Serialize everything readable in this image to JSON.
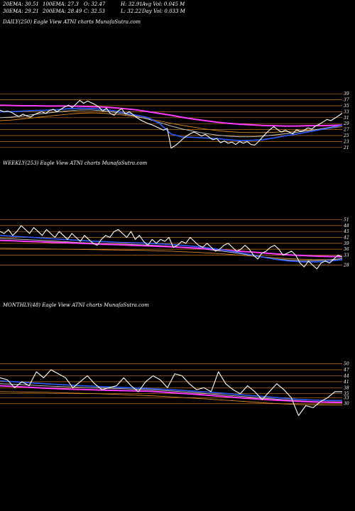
{
  "header": {
    "row1": [
      "20EMA: 30.51",
      "100EMA: 27.3",
      "O: 32.47",
      "H: 32.91",
      "Avg Vol: 0.045 M"
    ],
    "row2": [
      "30EMA: 29.21",
      "200EMA: 28.49",
      "C: 32.53",
      "L: 32.22",
      "Day Vol: 0.033 M"
    ]
  },
  "colors": {
    "background": "#000000",
    "price": "#ffffff",
    "ema_blue": "#2f5bff",
    "ema_magenta": "#ff3bff",
    "ema_orange": "#d98a2a",
    "ema_white": "#cfcfcf",
    "grid": "#c8761e"
  },
  "chart_data": [
    {
      "type": "line",
      "title": "DAILY(250) Eagle  View  ATNI charts MunafaSutra.com",
      "ylim": [
        20,
        40
      ],
      "yticks": [
        39,
        37,
        35,
        33,
        31,
        29,
        27,
        25,
        23,
        21
      ],
      "series": [
        {
          "role": "price",
          "values": [
            33.5,
            33.0,
            33.2,
            32.8,
            32.0,
            31.4,
            32.2,
            31.6,
            31.2,
            32.0,
            32.6,
            33.0,
            32.4,
            33.4,
            33.8,
            33.0,
            33.8,
            34.6,
            35.2,
            34.4,
            35.6,
            36.8,
            35.8,
            36.6,
            36.0,
            35.4,
            34.6,
            33.2,
            34.2,
            32.4,
            31.8,
            33.2,
            34.0,
            32.2,
            33.0,
            32.0,
            31.0,
            30.2,
            29.6,
            29.0,
            28.6,
            28.0,
            27.4,
            26.8,
            27.4,
            20.8,
            21.6,
            22.6,
            23.8,
            24.8,
            25.6,
            26.2,
            25.6,
            24.8,
            25.4,
            24.4,
            23.6,
            24.0,
            22.6,
            23.2,
            22.4,
            22.8,
            22.0,
            23.0,
            22.4,
            23.0,
            22.0,
            21.8,
            23.0,
            24.4,
            25.8,
            27.0,
            28.0,
            27.0,
            26.2,
            26.8,
            26.2,
            25.6,
            27.0,
            26.4,
            26.8,
            27.6,
            27.2,
            28.2,
            28.8,
            29.6,
            30.4,
            30.0,
            30.8,
            31.6,
            32.5
          ]
        },
        {
          "role": "ema_magenta",
          "values": [
            35.2,
            35.1,
            35.0,
            35.0,
            34.9,
            34.9,
            34.9,
            34.8,
            34.7,
            34.6,
            34.3,
            34.0,
            33.6,
            33.0,
            32.4,
            31.8,
            31.1,
            30.5,
            30.0,
            29.5,
            29.1,
            28.8,
            28.6,
            28.4,
            28.3,
            28.2,
            28.2,
            28.3,
            28.3,
            28.4,
            28.5
          ]
        },
        {
          "role": "ema_blue",
          "values": [
            33.0,
            33.0,
            33.2,
            33.4,
            33.5,
            33.7,
            34.0,
            34.2,
            34.1,
            33.8,
            33.3,
            32.6,
            31.8,
            31.0,
            29.0,
            25.5,
            24.5,
            24.4,
            24.2,
            24.0,
            23.6,
            23.3,
            23.4,
            23.6,
            24.2,
            24.9,
            25.5,
            26.2,
            26.9,
            27.6,
            28.5
          ]
        },
        {
          "role": "ema_orange",
          "values": [
            30.0,
            30.2,
            30.6,
            31.0,
            31.4,
            31.8,
            32.2,
            32.5,
            32.6,
            32.5,
            32.2,
            31.8,
            31.3,
            30.6,
            29.9,
            29.1,
            28.4,
            27.8,
            27.2,
            26.7,
            26.3,
            26.1,
            26.0,
            26.0,
            26.1,
            26.3,
            26.5,
            26.8,
            27.1,
            27.5,
            28.0
          ]
        },
        {
          "role": "ema_white",
          "values": [
            31.0,
            31.2,
            31.6,
            32.1,
            32.5,
            32.9,
            33.3,
            33.6,
            33.6,
            33.3,
            32.8,
            32.2,
            31.4,
            30.5,
            29.4,
            28.2,
            27.2,
            26.4,
            25.7,
            25.2,
            24.8,
            24.6,
            24.6,
            24.8,
            25.2,
            25.6,
            26.1,
            26.6,
            27.2,
            27.8,
            28.6
          ]
        }
      ]
    },
    {
      "type": "line",
      "title": "WEEKLY(253) Eagle  View  ATNI charts MunafaSutra.com",
      "ylim": [
        22,
        53
      ],
      "yticks": [
        51,
        48,
        45,
        42,
        39,
        36,
        33,
        28
      ],
      "series": [
        {
          "role": "price",
          "values": [
            45,
            44,
            46,
            43,
            45,
            48,
            46,
            44,
            47,
            45,
            43,
            46,
            44,
            42,
            45,
            43,
            41,
            44,
            42,
            40,
            43,
            41,
            39,
            38,
            41,
            43,
            42,
            45,
            46,
            44,
            42,
            45,
            41,
            43,
            40,
            38,
            41,
            39,
            41,
            40,
            42,
            37,
            38,
            40,
            39,
            42,
            40,
            38,
            37,
            39,
            37,
            35,
            36,
            38,
            39,
            37,
            35,
            36,
            38,
            36,
            33,
            31,
            34,
            35,
            37,
            38,
            36,
            33,
            34,
            35,
            33,
            29,
            27,
            30,
            28,
            26,
            29,
            30,
            29,
            31,
            33,
            32
          ]
        },
        {
          "role": "ema_magenta",
          "values": [
            40.5,
            40.3,
            40.0,
            39.8,
            39.5,
            39.3,
            39.0,
            38.8,
            38.5,
            38.3,
            38.0,
            37.8,
            37.5,
            37.2,
            36.9,
            36.5,
            36.1,
            35.6,
            35.1,
            34.6,
            34.1,
            33.6,
            33.1,
            32.8,
            32.5,
            32.3,
            32.2
          ]
        },
        {
          "role": "ema_blue",
          "values": [
            43.0,
            42.6,
            42.2,
            41.8,
            41.3,
            40.9,
            40.5,
            40.1,
            39.8,
            39.5,
            39.3,
            39.1,
            38.8,
            38.4,
            37.9,
            37.3,
            36.5,
            35.6,
            34.5,
            33.3,
            32.0,
            30.8,
            30.0,
            29.6,
            29.6,
            30.0,
            30.6
          ]
        },
        {
          "role": "ema_orange",
          "values": [
            36.5,
            36.4,
            36.3,
            36.2,
            36.1,
            36.0,
            35.9,
            35.8,
            35.7,
            35.6,
            35.5,
            35.4,
            35.2,
            35.0,
            34.7,
            34.4,
            34.0,
            33.6,
            33.1,
            32.6,
            32.1,
            31.6,
            31.2,
            30.9,
            30.7,
            30.6,
            30.6
          ]
        },
        {
          "role": "ema_white",
          "values": [
            41.5,
            41.2,
            40.9,
            40.6,
            40.2,
            39.8,
            39.4,
            39.1,
            38.8,
            38.6,
            38.4,
            38.2,
            37.9,
            37.5,
            37.0,
            36.4,
            35.7,
            34.9,
            34.0,
            33.0,
            32.0,
            31.1,
            30.5,
            30.2,
            30.3,
            30.7,
            31.2
          ]
        }
      ]
    },
    {
      "type": "line",
      "title": "MONTHLY(48) Eagle  View  ATNI charts MunafaSutra.com",
      "ylim": [
        21,
        52
      ],
      "yticks": [
        50,
        47,
        44,
        41,
        38,
        35,
        33,
        30
      ],
      "series": [
        {
          "role": "price",
          "values": [
            43,
            42,
            38,
            41,
            39,
            46,
            43,
            47,
            45,
            43,
            38,
            41,
            44,
            40,
            37,
            38,
            39,
            43,
            39,
            36,
            41,
            44,
            42,
            38,
            45,
            44,
            40,
            37,
            38,
            36,
            46,
            40,
            37,
            35,
            39,
            36,
            32,
            36,
            40,
            37,
            33,
            24,
            29,
            28,
            31,
            33,
            36,
            36
          ]
        },
        {
          "role": "ema_magenta",
          "values": [
            39.0,
            38.6,
            38.2,
            37.8,
            37.5,
            37.2,
            37.0,
            36.8,
            36.6,
            36.4,
            36.2,
            35.8,
            35.3,
            34.8,
            34.2,
            33.6,
            33.0,
            32.5,
            32.0,
            31.6,
            31.2,
            30.9,
            30.7,
            30.6
          ]
        },
        {
          "role": "ema_blue",
          "values": [
            41.5,
            41.0,
            40.5,
            40.0,
            39.6,
            39.2,
            38.8,
            38.5,
            38.2,
            37.9,
            37.6,
            37.2,
            36.8,
            36.3,
            35.8,
            35.2,
            34.6,
            34.0,
            33.4,
            32.8,
            32.2,
            31.8,
            31.6,
            31.6
          ]
        },
        {
          "role": "ema_orange",
          "values": [
            36.0,
            35.9,
            35.8,
            35.7,
            35.5,
            35.3,
            35.1,
            34.9,
            34.6,
            34.3,
            34.0,
            33.6,
            33.2,
            32.8,
            32.3,
            31.8,
            31.3,
            30.8,
            30.3,
            29.9,
            29.6,
            29.4,
            29.3,
            29.3
          ]
        },
        {
          "role": "ema_white",
          "values": [
            40.0,
            39.7,
            39.3,
            38.9,
            38.6,
            38.3,
            38.0,
            37.8,
            37.6,
            37.3,
            37.0,
            36.6,
            36.1,
            35.6,
            35.0,
            34.4,
            33.8,
            33.2,
            32.6,
            32.0,
            31.5,
            31.1,
            30.9,
            30.9
          ]
        }
      ]
    }
  ]
}
